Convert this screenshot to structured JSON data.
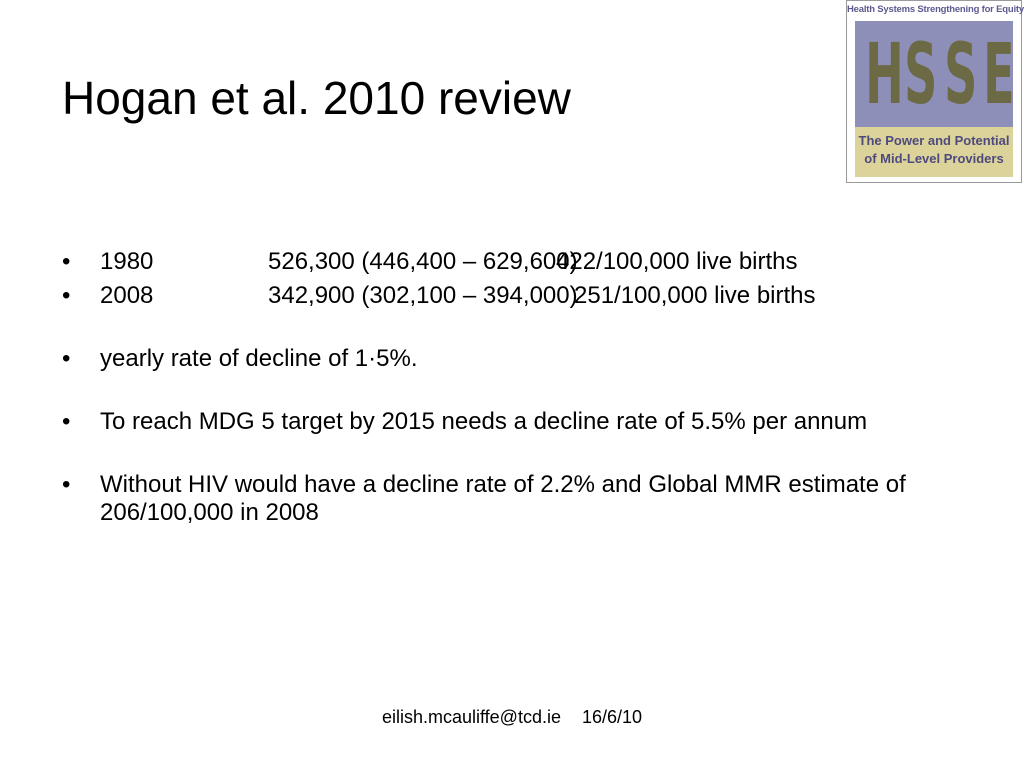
{
  "slide": {
    "title": "Hogan et al. 2010 review"
  },
  "logo": {
    "top_text": "Health Systems Strengthening for Equity",
    "letters": [
      "H",
      "S",
      "S",
      "E"
    ],
    "bottom_line1": "The Power and Potential",
    "bottom_line2": "of Mid-Level Providers"
  },
  "stats": [
    {
      "year": "1980",
      "count": "526,300 (446,400 – 629,600)",
      "ratio": "422/100,000 live births"
    },
    {
      "year": "2008",
      "count": "342,900 (302,100 – 394,000)",
      "ratio": "251/100,000 live births"
    }
  ],
  "bullets": {
    "decline": "yearly rate of decline of 1·5%.",
    "mdg": "To reach MDG 5 target by 2015 needs a decline rate of 5.5% per annum",
    "hiv": "Without HIV would have a decline rate of 2.2% and Global MMR estimate of 206/100,000 in 2008"
  },
  "footer": {
    "email": "eilish.mcauliffe@tcd.ie",
    "date": "16/6/10"
  }
}
